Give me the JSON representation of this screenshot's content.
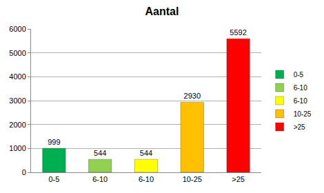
{
  "chart_data": {
    "type": "bar",
    "title": "Aantal",
    "categories": [
      "0-5",
      "6-10",
      "6-10",
      "10-25",
      ">25"
    ],
    "values": [
      999,
      544,
      544,
      2930,
      5592
    ],
    "colors": [
      "#00b050",
      "#92d050",
      "#ffff00",
      "#ffc000",
      "#ff0000"
    ],
    "ylim": [
      0,
      6000
    ],
    "yticks": [
      0,
      1000,
      2000,
      3000,
      4000,
      5000,
      6000
    ],
    "grid": true,
    "legend": "right",
    "data_labels": true
  }
}
